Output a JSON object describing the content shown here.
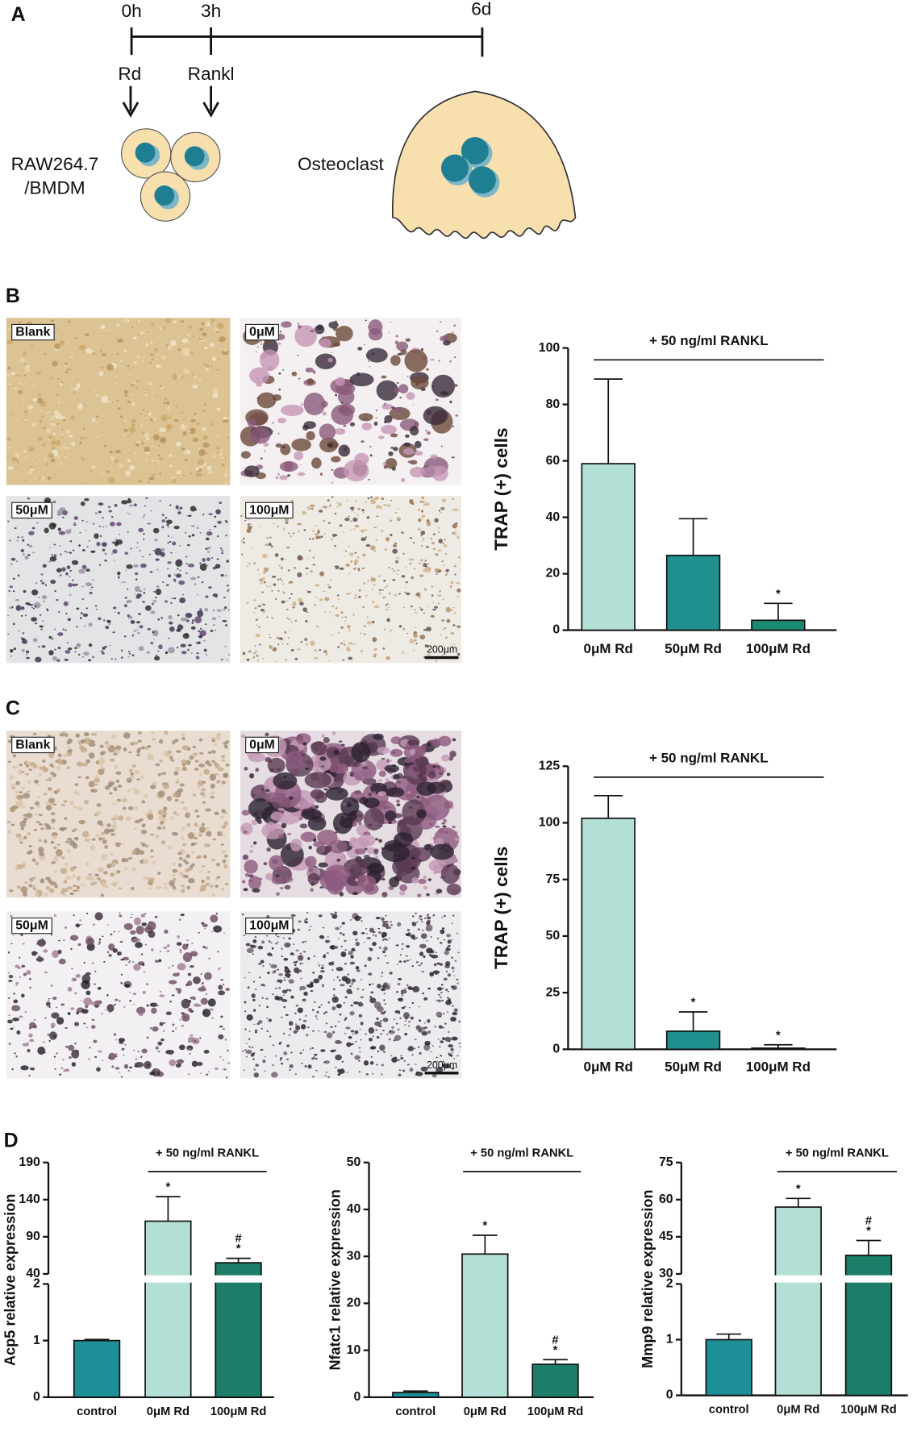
{
  "panels": [
    "A",
    "B",
    "C",
    "D"
  ],
  "timeline": {
    "times": [
      "0h",
      "3h",
      "6d"
    ],
    "treatments": [
      "Rd",
      "Rankl"
    ],
    "cell_line": [
      "RAW264.7",
      "/BMDM"
    ],
    "result": "Osteoclast"
  },
  "micrographs": [
    {
      "labels": [
        "Blank",
        "0μM",
        "50μM",
        "100μM"
      ],
      "scale_bar": "200μm"
    },
    {
      "labels": [
        "Blank",
        "0μM",
        "50μM",
        "100μM"
      ],
      "scale_bar": "200μm"
    }
  ],
  "chart_data": [
    {
      "type": "bar",
      "ylabel": "TRAP (+) cells",
      "annotation": "+ 50 ng/ml RANKL",
      "categories": [
        "0μM Rd",
        "50μM Rd",
        "100μM Rd"
      ],
      "values": [
        59,
        26.5,
        3.5
      ],
      "errors": [
        30,
        13,
        6
      ],
      "significance": [
        null,
        null,
        [
          "*"
        ]
      ],
      "colors": [
        "#b3e0d6",
        "#20908f",
        "#1a8a72"
      ],
      "ylim": [
        0,
        100
      ],
      "yticks": [
        0,
        20,
        40,
        60,
        80,
        100
      ]
    },
    {
      "type": "bar",
      "ylabel": "TRAP (+) cells",
      "annotation": "+ 50 ng/ml RANKL",
      "categories": [
        "0μM Rd",
        "50μM Rd",
        "100μM Rd"
      ],
      "values": [
        102,
        8,
        0.5
      ],
      "errors": [
        10,
        8.5,
        1.5
      ],
      "significance": [
        null,
        [
          "*"
        ],
        [
          "*"
        ]
      ],
      "colors": [
        "#b3e0d6",
        "#20908f",
        "#1a8a72"
      ],
      "ylim": [
        0,
        125
      ],
      "yticks": [
        0,
        25,
        50,
        75,
        100,
        125
      ]
    },
    {
      "type": "broken-bar",
      "ylabel": "Acp5 relative expression",
      "annotation": "+ 50 ng/ml RANKL",
      "categories": [
        "control",
        "0μM Rd",
        "100μM Rd"
      ],
      "values": [
        1.0,
        111,
        55
      ],
      "errors": [
        0.02,
        33,
        6
      ],
      "significance": [
        null,
        [
          "*"
        ],
        [
          "#",
          "*"
        ]
      ],
      "colors": [
        "#1d8f96",
        "#b3e0d6",
        "#1c7d68"
      ],
      "ylim_lower": [
        0,
        2
      ],
      "yticks_lower": [
        0,
        1,
        2
      ],
      "ylim_upper": [
        40,
        190
      ],
      "yticks_upper": [
        40,
        90,
        140,
        190
      ]
    },
    {
      "type": "bar",
      "ylabel": "Nfatc1 relative expression",
      "annotation": "+ 50 ng/ml RANKL",
      "categories": [
        "control",
        "0μM Rd",
        "100μM Rd"
      ],
      "values": [
        1,
        30.5,
        7
      ],
      "errors": [
        0.3,
        4,
        1
      ],
      "significance": [
        null,
        [
          "*"
        ],
        [
          "#",
          "*"
        ]
      ],
      "colors": [
        "#1d8f96",
        "#b3e0d6",
        "#1c7d68"
      ],
      "ylim": [
        0,
        50
      ],
      "yticks": [
        0,
        10,
        20,
        30,
        40,
        50
      ]
    },
    {
      "type": "broken-bar",
      "ylabel": "Mmp9 relative expression",
      "annotation": "+ 50 ng/ml RANKL",
      "categories": [
        "control",
        "0μM Rd",
        "100μM Rd"
      ],
      "values": [
        1.0,
        57,
        37.5
      ],
      "errors": [
        0.1,
        3.5,
        6
      ],
      "significance": [
        null,
        [
          "*"
        ],
        [
          "#",
          "*"
        ]
      ],
      "colors": [
        "#1d8f96",
        "#b3e0d6",
        "#1c7d68"
      ],
      "ylim_lower": [
        0,
        2
      ],
      "yticks_lower": [
        0,
        1,
        2
      ],
      "ylim_upper": [
        30,
        75
      ],
      "yticks_upper": [
        30,
        45,
        60,
        75
      ]
    }
  ]
}
